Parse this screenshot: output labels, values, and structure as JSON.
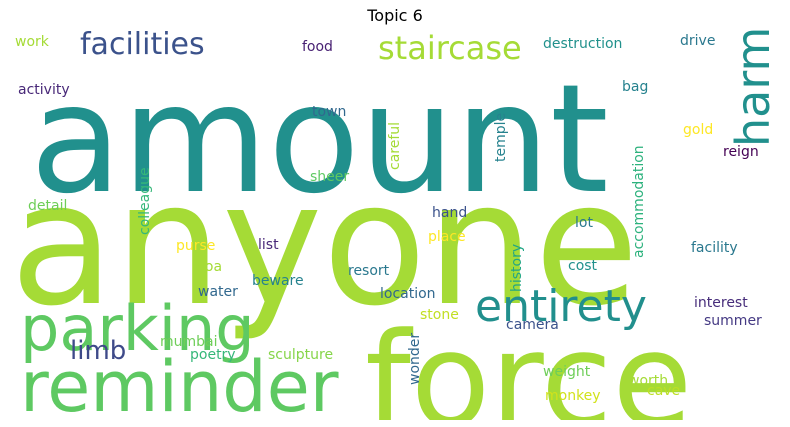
{
  "title": "Topic 6",
  "words": [
    {
      "text": "amount",
      "color": "#21908d"
    },
    {
      "text": "anyone",
      "color": "#a5db36"
    },
    {
      "text": "force",
      "color": "#a5db36"
    },
    {
      "text": "reminder",
      "color": "#5ec962"
    },
    {
      "text": "parking",
      "color": "#5ec962"
    },
    {
      "text": "entirety",
      "color": "#218f8d"
    },
    {
      "text": "staircase",
      "color": "#a5db36"
    },
    {
      "text": "facilities",
      "color": "#3b528b"
    },
    {
      "text": "harm",
      "color": "#21908d"
    },
    {
      "text": "limb",
      "color": "#3e4a89"
    },
    {
      "text": "work",
      "color": "#a5db36"
    },
    {
      "text": "food",
      "color": "#482173"
    },
    {
      "text": "destruction",
      "color": "#21918c"
    },
    {
      "text": "drive",
      "color": "#2a788e"
    },
    {
      "text": "activity",
      "color": "#482878"
    },
    {
      "text": "town",
      "color": "#31688e"
    },
    {
      "text": "bag",
      "color": "#26828e"
    },
    {
      "text": "gold",
      "color": "#fde725"
    },
    {
      "text": "reign",
      "color": "#440154"
    },
    {
      "text": "sheer",
      "color": "#5ec962"
    },
    {
      "text": "detail",
      "color": "#6ece58"
    },
    {
      "text": "hand",
      "color": "#3b528b"
    },
    {
      "text": "lot",
      "color": "#2a788e"
    },
    {
      "text": "place",
      "color": "#fde725"
    },
    {
      "text": "purse",
      "color": "#fde725"
    },
    {
      "text": "list",
      "color": "#482878"
    },
    {
      "text": "goa",
      "color": "#a5db36"
    },
    {
      "text": "beware",
      "color": "#26828e"
    },
    {
      "text": "resort",
      "color": "#2a788e"
    },
    {
      "text": "cost",
      "color": "#21918c"
    },
    {
      "text": "facility",
      "color": "#2a788e"
    },
    {
      "text": "water",
      "color": "#31688e"
    },
    {
      "text": "location",
      "color": "#31688e"
    },
    {
      "text": "interest",
      "color": "#472d7b"
    },
    {
      "text": "summer",
      "color": "#443983"
    },
    {
      "text": "stone",
      "color": "#c2df23"
    },
    {
      "text": "camera",
      "color": "#3b528b"
    },
    {
      "text": "mumbai",
      "color": "#6ece58"
    },
    {
      "text": "poetry",
      "color": "#35b779"
    },
    {
      "text": "sculpture",
      "color": "#86d549"
    },
    {
      "text": "weight",
      "color": "#6ece58"
    },
    {
      "text": "worth",
      "color": "#a5db36"
    },
    {
      "text": "cave",
      "color": "#bddf26"
    },
    {
      "text": "monkey",
      "color": "#d2e21b"
    },
    {
      "text": "careful",
      "color": "#a5db36"
    },
    {
      "text": "temple",
      "color": "#26828e"
    },
    {
      "text": "accommodation",
      "color": "#2db27d"
    },
    {
      "text": "colleague",
      "color": "#35b779"
    },
    {
      "text": "history",
      "color": "#21a685"
    },
    {
      "text": "wonder",
      "color": "#31688e"
    }
  ]
}
